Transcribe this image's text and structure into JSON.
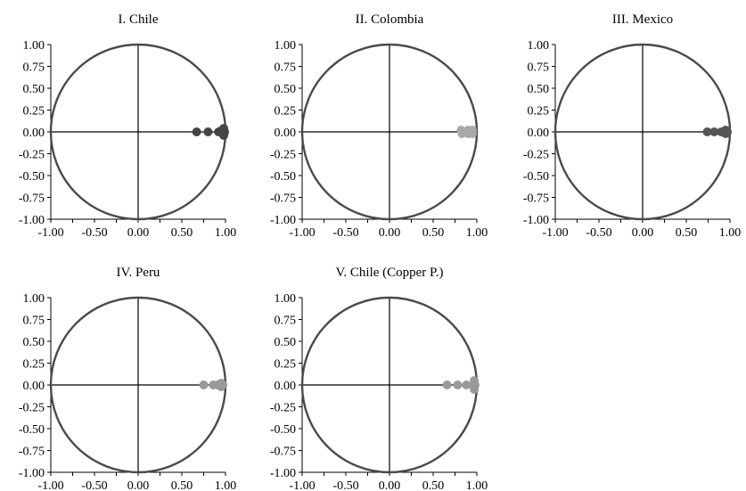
{
  "chart_data": [
    {
      "type": "scatter",
      "title": "I. Chile",
      "xlim": [
        -1,
        1
      ],
      "ylim": [
        -1,
        1
      ],
      "ticks": [
        -1,
        -0.75,
        -0.5,
        -0.25,
        0,
        0.25,
        0.5,
        0.75,
        1
      ],
      "y_tick_labels": [
        "1.00",
        "0.75",
        "0.50",
        "0.25",
        "0.00",
        "-0.25",
        "-0.50",
        "-0.75",
        "-1.00"
      ],
      "x_tick_labels": [
        "-1.00",
        "-0.50",
        "0.00",
        "0.50",
        "1.00"
      ],
      "unit_circle": true,
      "point_color": "#444444",
      "points": [
        {
          "x": 0.67,
          "y": 0.0
        },
        {
          "x": 0.8,
          "y": 0.0
        },
        {
          "x": 0.92,
          "y": 0.0
        },
        {
          "x": 0.96,
          "y": 0.02
        },
        {
          "x": 0.97,
          "y": -0.02
        },
        {
          "x": 0.98,
          "y": 0.04
        },
        {
          "x": 0.98,
          "y": -0.04
        },
        {
          "x": 0.99,
          "y": 0.0
        }
      ]
    },
    {
      "type": "scatter",
      "title": "II. Colombia",
      "xlim": [
        -1,
        1
      ],
      "ylim": [
        -1,
        1
      ],
      "ticks": [
        -1,
        -0.75,
        -0.5,
        -0.25,
        0,
        0.25,
        0.5,
        0.75,
        1
      ],
      "y_tick_labels": [
        "1.00",
        "0.75",
        "0.50",
        "0.25",
        "0.00",
        "-0.25",
        "-0.50",
        "-0.75",
        "-1.00"
      ],
      "x_tick_labels": [
        "-1.00",
        "-0.50",
        "0.00",
        "0.50",
        "1.00"
      ],
      "unit_circle": true,
      "point_color": "#a8a8a8",
      "points": [
        {
          "x": 0.82,
          "y": 0.02
        },
        {
          "x": 0.83,
          "y": -0.02
        },
        {
          "x": 0.86,
          "y": 0.0
        },
        {
          "x": 0.9,
          "y": 0.02
        },
        {
          "x": 0.9,
          "y": -0.02
        },
        {
          "x": 0.93,
          "y": 0.0
        },
        {
          "x": 0.95,
          "y": 0.02
        },
        {
          "x": 0.95,
          "y": -0.02
        }
      ]
    },
    {
      "type": "scatter",
      "title": "III. Mexico",
      "xlim": [
        -1,
        1
      ],
      "ylim": [
        -1,
        1
      ],
      "ticks": [
        -1,
        -0.75,
        -0.5,
        -0.25,
        0,
        0.25,
        0.5,
        0.75,
        1
      ],
      "y_tick_labels": [
        "1.00",
        "0.75",
        "0.50",
        "0.25",
        "0.00",
        "-0.25",
        "-0.50",
        "-0.75",
        "-1.00"
      ],
      "x_tick_labels": [
        "-1.00",
        "-0.50",
        "0.00",
        "0.50",
        "1.00"
      ],
      "unit_circle": true,
      "point_color": "#555555",
      "points": [
        {
          "x": 0.74,
          "y": 0.0
        },
        {
          "x": 0.82,
          "y": 0.0
        },
        {
          "x": 0.9,
          "y": 0.0
        },
        {
          "x": 0.95,
          "y": 0.02
        },
        {
          "x": 0.95,
          "y": -0.02
        },
        {
          "x": 0.97,
          "y": 0.0
        }
      ]
    },
    {
      "type": "scatter",
      "title": "IV. Peru",
      "xlim": [
        -1,
        1
      ],
      "ylim": [
        -1,
        1
      ],
      "ticks": [
        -1,
        -0.75,
        -0.5,
        -0.25,
        0,
        0.25,
        0.5,
        0.75,
        1
      ],
      "y_tick_labels": [
        "1.00",
        "0.75",
        "0.50",
        "0.25",
        "0.00",
        "-0.25",
        "-0.50",
        "-0.75",
        "-1.00"
      ],
      "x_tick_labels": [
        "-1.00",
        "-0.50",
        "0.00",
        "0.50",
        "1.00"
      ],
      "unit_circle": true,
      "point_color": "#999999",
      "points": [
        {
          "x": 0.75,
          "y": 0.0
        },
        {
          "x": 0.86,
          "y": 0.0
        },
        {
          "x": 0.91,
          "y": 0.0
        },
        {
          "x": 0.95,
          "y": 0.02
        },
        {
          "x": 0.95,
          "y": -0.02
        },
        {
          "x": 0.97,
          "y": 0.0
        }
      ]
    },
    {
      "type": "scatter",
      "title": "V. Chile (Copper P.)",
      "xlim": [
        -1,
        1
      ],
      "ylim": [
        -1,
        1
      ],
      "ticks": [
        -1,
        -0.75,
        -0.5,
        -0.25,
        0,
        0.25,
        0.5,
        0.75,
        1
      ],
      "y_tick_labels": [
        "1.00",
        "0.75",
        "0.50",
        "0.25",
        "0.00",
        "-0.25",
        "-0.50",
        "-0.75",
        "-1.00"
      ],
      "x_tick_labels": [
        "-1.00",
        "-0.50",
        "0.00",
        "0.50",
        "1.00"
      ],
      "unit_circle": true,
      "point_color": "#999999",
      "points": [
        {
          "x": 0.66,
          "y": 0.0
        },
        {
          "x": 0.78,
          "y": 0.0
        },
        {
          "x": 0.88,
          "y": 0.0
        },
        {
          "x": 0.97,
          "y": 0.05
        },
        {
          "x": 0.97,
          "y": 0.02
        },
        {
          "x": 0.97,
          "y": -0.02
        },
        {
          "x": 0.97,
          "y": -0.05
        },
        {
          "x": 0.98,
          "y": 0.0
        }
      ]
    }
  ]
}
